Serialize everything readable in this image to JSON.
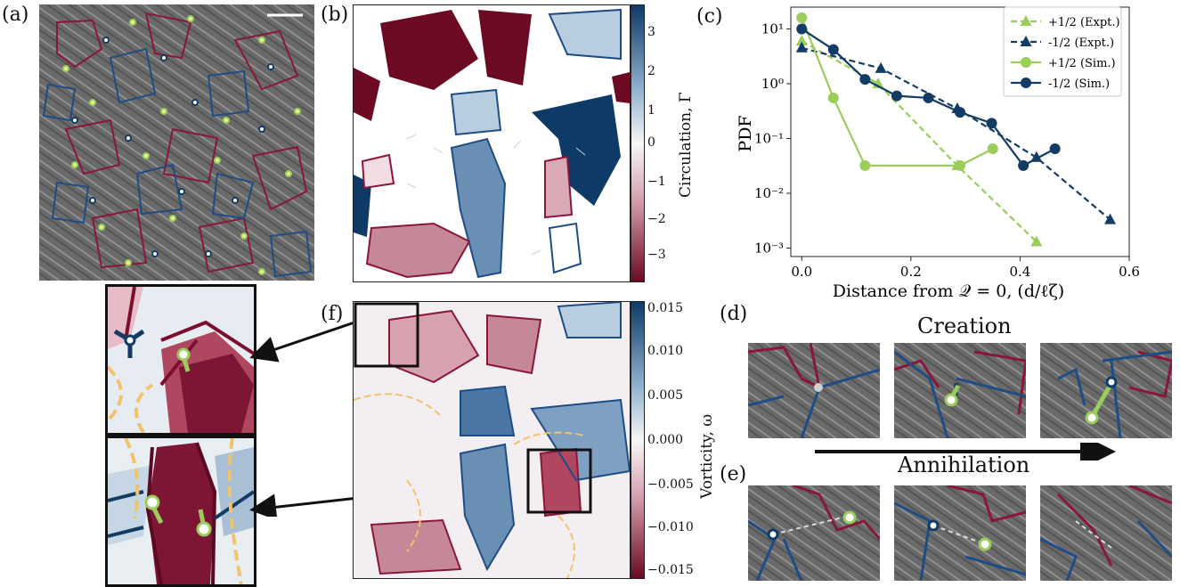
{
  "panel_labels": {
    "a": "(a)",
    "b": "(b)",
    "c": "(c)",
    "d": "(d)",
    "e": "(e)",
    "f": "(f)"
  },
  "colorbar_b": {
    "label": "Circulation, Γ",
    "ticks": [
      "3",
      "2",
      "1",
      "0",
      "−1",
      "−2",
      "−3"
    ],
    "colors": {
      "top": "#0d3a66",
      "mid": "#f7f7f7",
      "bottom": "#6b0a22"
    }
  },
  "colorbar_f": {
    "label": "Vorticity, ω",
    "ticks": [
      "0.015",
      "0.010",
      "0.005",
      "0.000",
      "−0.005",
      "−0.010",
      "−0.015"
    ]
  },
  "creation_label": "Creation",
  "annihilation_label": "Annihilation",
  "colors": {
    "plus_half": "#9acd5a",
    "minus_half": "#123c66",
    "contour_pos": "#8a1638",
    "contour_neg": "#1e4d86",
    "zero_contour": "#f2c36b"
  },
  "chart_data": {
    "type": "line",
    "title": "",
    "xlabel": "Distance from 𝒬 = 0, (d/ℓζ)",
    "ylabel": "PDF",
    "y_scale": "log",
    "xlim": [
      -0.02,
      0.6
    ],
    "ylim": [
      0.0007,
      25
    ],
    "x_ticks": [
      "0.0",
      "0.2",
      "0.4",
      "0.6"
    ],
    "y_ticks": [
      "10¹",
      "10⁰",
      "10⁻¹",
      "10⁻²",
      "10⁻³"
    ],
    "legend_position": "top-right",
    "series": [
      {
        "name": "+1/2 (Expt.)",
        "color": "#9acd5a",
        "marker": "triangle",
        "dashed": true,
        "x": [
          0.0,
          0.14,
          0.285,
          0.43
        ],
        "y": [
          6.0,
          1.0,
          0.032,
          0.0013
        ]
      },
      {
        "name": "-1/2 (Expt.)",
        "color": "#123c66",
        "marker": "triangle",
        "dashed": true,
        "x": [
          0.0,
          0.145,
          0.285,
          0.43,
          0.565
        ],
        "y": [
          4.5,
          1.9,
          0.35,
          0.045,
          0.0033
        ]
      },
      {
        "name": "+1/2 (Sim.)",
        "color": "#9acd5a",
        "marker": "circle",
        "dashed": false,
        "x": [
          0.0,
          0.058,
          0.116,
          0.29,
          0.35
        ],
        "y": [
          16,
          0.55,
          0.032,
          0.032,
          0.065
        ]
      },
      {
        "name": "-1/2 (Sim.)",
        "color": "#123c66",
        "marker": "circle",
        "dashed": false,
        "x": [
          0.0,
          0.058,
          0.116,
          0.174,
          0.232,
          0.29,
          0.348,
          0.406,
          0.464
        ],
        "y": [
          10,
          4.2,
          1.2,
          0.6,
          0.55,
          0.3,
          0.19,
          0.032,
          0.065
        ]
      }
    ]
  }
}
